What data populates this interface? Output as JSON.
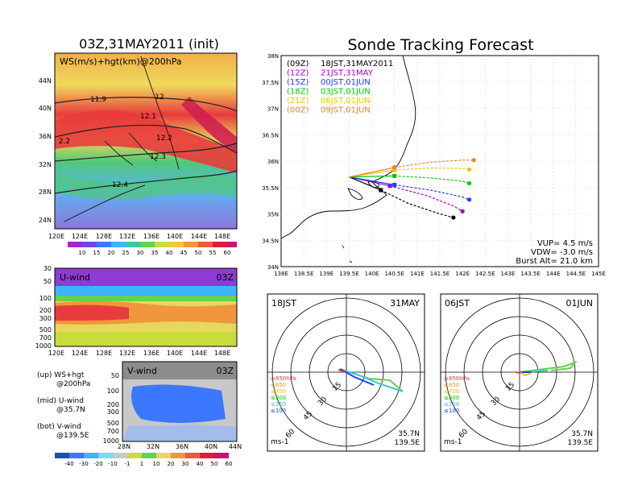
{
  "left": {
    "title": "03Z,31MAY2011 (init)",
    "top_panel": {
      "label": "WS(m/s)+hgt(km)@200hPa",
      "lat_ticks": [
        "44N",
        "40N",
        "36N",
        "32N",
        "28N",
        "24N"
      ],
      "lon_ticks": [
        "120E",
        "124E",
        "128E",
        "132E",
        "136E",
        "140E",
        "144E",
        "148E"
      ],
      "contour_labels": [
        "11.9",
        "12",
        "12.1",
        "12.2",
        "2.2",
        "12.3",
        "12.4"
      ],
      "colorbar_ticks": [
        "10",
        "15",
        "20",
        "25",
        "30",
        "35",
        "40",
        "45",
        "50",
        "55",
        "60"
      ]
    },
    "u_panel": {
      "label": "U-wind",
      "time": "03Z",
      "p_ticks": [
        "30",
        "50",
        "100",
        "200",
        "300",
        "500",
        "700",
        "1000"
      ],
      "lon_ticks": [
        "120E",
        "124E",
        "128E",
        "132E",
        "136E",
        "140E",
        "144E",
        "148E"
      ]
    },
    "v_panel": {
      "label": "V-wind",
      "time": "03Z",
      "p_ticks": [
        "50",
        "100",
        "200",
        "300",
        "500",
        "700",
        "1000"
      ],
      "lat_ticks": [
        "28N",
        "32N",
        "36N",
        "40N",
        "44N"
      ]
    },
    "notes": [
      {
        "a": "(up) WS+hgt",
        "b": "@200hPa"
      },
      {
        "a": "(mid) U-wind",
        "b": "@35.7N"
      },
      {
        "a": "(bot) V-wind",
        "b": "@139.5E"
      }
    ],
    "colorbar2_ticks": [
      "-40",
      "-30",
      "-20",
      "-10",
      "-1",
      "1",
      "10",
      "20",
      "30",
      "40",
      "50",
      "60"
    ]
  },
  "right": {
    "title": "Sonde Tracking Forecast",
    "lat_ticks": [
      "38N",
      "37.5N",
      "37N",
      "36.5N",
      "36N",
      "35.5N",
      "35N",
      "34.5N",
      "34N"
    ],
    "lon_ticks": [
      "138E",
      "138.5E",
      "139E",
      "139.5E",
      "140E",
      "140.5E",
      "141E",
      "141.5E",
      "142E",
      "142.5E",
      "143E",
      "143.5E",
      "144E",
      "144.5E",
      "145E"
    ],
    "legend": [
      {
        "run": "(09Z)",
        "time": "18JST,31MAY2011",
        "color": "#000000"
      },
      {
        "run": "(12Z)",
        "time": "21JST,31MAY",
        "color": "#a000c8"
      },
      {
        "run": "(15Z)",
        "time": "00JST,01JUN",
        "color": "#1e3cff"
      },
      {
        "run": "(18Z)",
        "time": "03JST,01JUN",
        "color": "#00c800"
      },
      {
        "run": "(21Z)",
        "time": "06JST,01JUN",
        "color": "#e6c800"
      },
      {
        "run": "(00Z)",
        "time": "09JST,01JUN",
        "color": "#f08228"
      }
    ],
    "params": [
      "VUP= 4.5 m/s",
      "VDW= -3.0 m/s",
      "Burst Alt= 21.0 km"
    ],
    "hodo1": {
      "time": "18JST",
      "date": "31MAY",
      "units": "ms-1",
      "lat": "35.7N",
      "lon": "139.5E"
    },
    "hodo2": {
      "time": "06JST",
      "date": "01JUN",
      "units": "ms-1",
      "lat": "35.7N",
      "lon": "139.5E"
    },
    "hodo_rings": [
      "15",
      "30",
      "45",
      "60"
    ],
    "hodo_legend": [
      "≥850hPa",
      "≤850",
      "≤700",
      "≤500",
      "≤250",
      "≤100"
    ]
  },
  "chart_data": [
    {
      "type": "line",
      "title": "Sonde Tracking Forecast",
      "xlim": [
        138,
        145
      ],
      "ylim": [
        34,
        38
      ],
      "series": [
        {
          "name": "(09Z) 18JST,31MAY2011",
          "color": "#000000",
          "x": [
            139.5,
            140.2,
            140.8,
            141.5,
            141.8
          ],
          "y": [
            35.7,
            35.45,
            35.2,
            35.0,
            34.93
          ]
        },
        {
          "name": "(12Z) 21JST,31MAY",
          "color": "#a000c8",
          "x": [
            139.5,
            140.4,
            141.2,
            141.8,
            142.0
          ],
          "y": [
            35.7,
            35.53,
            35.35,
            35.15,
            35.05
          ]
        },
        {
          "name": "(15Z) 00JST,01JUN",
          "color": "#1e3cff",
          "x": [
            139.5,
            140.5,
            141.3,
            142.0,
            142.15
          ],
          "y": [
            35.7,
            35.55,
            35.45,
            35.32,
            35.27
          ]
        },
        {
          "name": "(18Z) 03JST,01JUN",
          "color": "#00c800",
          "x": [
            139.5,
            140.5,
            141.3,
            142.0,
            142.15
          ],
          "y": [
            35.7,
            35.72,
            35.68,
            35.62,
            35.58
          ]
        },
        {
          "name": "(21Z) 06JST,01JUN",
          "color": "#e6c800",
          "x": [
            139.5,
            140.5,
            141.3,
            142.0,
            142.15
          ],
          "y": [
            35.7,
            35.83,
            35.87,
            35.86,
            35.84
          ]
        },
        {
          "name": "(00Z) 09JST,01JUN",
          "color": "#f08228",
          "x": [
            139.5,
            140.5,
            141.3,
            142.0,
            142.25
          ],
          "y": [
            35.7,
            35.88,
            35.98,
            36.02,
            36.02
          ]
        }
      ]
    }
  ]
}
